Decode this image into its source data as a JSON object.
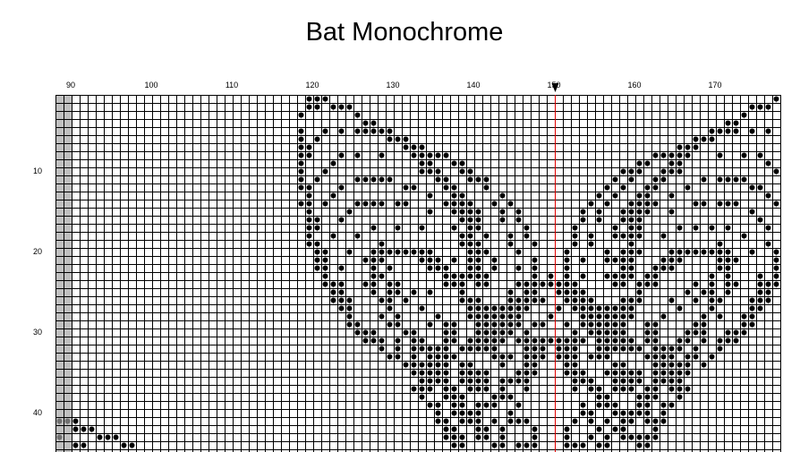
{
  "title": "Bat Monochrome",
  "pattern": {
    "first_column": 88,
    "last_column": 177,
    "first_row": 1,
    "last_row": 45,
    "shaded_columns": [
      88,
      89
    ],
    "center_column": 150,
    "column_labels": [
      "90",
      "100",
      "110",
      "120",
      "130",
      "140",
      "150",
      "160",
      "170"
    ],
    "row_labels": [
      "10",
      "20",
      "30",
      "40"
    ],
    "colors": {
      "grid": "#000000",
      "stitch": "#000000",
      "shaded": "#c0c0c0",
      "shaded_stitch": "#707070",
      "center_line": "#e00000"
    },
    "stitches": {
      "1": [
        119,
        120,
        121,
        177
      ],
      "2": [
        119,
        120,
        122,
        123,
        124,
        174,
        175,
        176
      ],
      "3": [
        118,
        125,
        173
      ],
      "4": [
        126,
        127,
        171,
        172
      ],
      "5": [
        118,
        121,
        123,
        125,
        126,
        127,
        128,
        129,
        169,
        170,
        171,
        172,
        174,
        176
      ],
      "6": [
        118,
        120,
        129,
        130,
        131,
        167,
        168,
        169
      ],
      "7": [
        118,
        119,
        131,
        132,
        133,
        165,
        166,
        167
      ],
      "8": [
        118,
        119,
        123,
        125,
        128,
        132,
        133,
        134,
        135,
        136,
        162,
        163,
        164,
        165,
        166,
        170,
        173,
        175
      ],
      "9": [
        118,
        122,
        133,
        134,
        137,
        138,
        160,
        161,
        164,
        165,
        176
      ],
      "10": [
        118,
        121,
        133,
        134,
        135,
        138,
        139,
        158,
        159,
        160,
        163,
        164,
        165,
        177
      ],
      "11": [
        118,
        120,
        125,
        126,
        127,
        128,
        129,
        135,
        136,
        139,
        140,
        141,
        157,
        159,
        162,
        163,
        168,
        170,
        171,
        172,
        173
      ],
      "12": [
        118,
        119,
        123,
        131,
        132,
        136,
        137,
        141,
        156,
        158,
        161,
        162,
        166,
        174,
        175
      ],
      "13": [
        119,
        122,
        134,
        137,
        138,
        143,
        155,
        157,
        160,
        161,
        164,
        176
      ],
      "14": [
        118,
        119,
        121,
        125,
        126,
        127,
        128,
        130,
        131,
        136,
        137,
        138,
        139,
        142,
        144,
        154,
        156,
        159,
        160,
        161,
        162,
        167,
        168,
        170,
        171,
        172,
        177
      ],
      "15": [
        119,
        124,
        134,
        137,
        138,
        139,
        140,
        143,
        145,
        153,
        155,
        158,
        159,
        160,
        161,
        164,
        174
      ],
      "16": [
        119,
        120,
        123,
        138,
        139,
        140,
        143,
        145,
        153,
        155,
        158,
        159,
        160,
        175
      ],
      "17": [
        119,
        120,
        127,
        130,
        133,
        137,
        139,
        140,
        146,
        152,
        157,
        159,
        160,
        165,
        167,
        169,
        171,
        176
      ],
      "18": [
        119,
        122,
        125,
        138,
        139,
        141,
        144,
        146,
        152,
        154,
        157,
        158,
        159,
        160,
        163,
        173
      ],
      "19": [
        119,
        120,
        128,
        138,
        139,
        140,
        144,
        147,
        152,
        154,
        159,
        170,
        176
      ],
      "20": [
        120,
        121,
        124,
        127,
        128,
        129,
        130,
        131,
        132,
        133,
        134,
        139,
        140,
        141,
        145,
        151,
        156,
        158,
        159,
        160,
        164,
        165,
        166,
        167,
        168,
        169,
        170,
        171,
        174,
        177
      ],
      "21": [
        120,
        121,
        126,
        127,
        128,
        133,
        134,
        135,
        137,
        139,
        140,
        142,
        147,
        151,
        153,
        156,
        157,
        158,
        159,
        163,
        164,
        165,
        170,
        171,
        172,
        177
      ],
      "22": [
        120,
        121,
        123,
        127,
        129,
        134,
        135,
        136,
        139,
        140,
        142,
        145,
        147,
        151,
        158,
        159,
        162,
        163,
        164,
        170,
        171,
        177
      ],
      "23": [
        121,
        127,
        128,
        136,
        137,
        138,
        139,
        140,
        141,
        147,
        149,
        151,
        153,
        156,
        157,
        158,
        159,
        161,
        162,
        169,
        171,
        175,
        177
      ],
      "24": [
        121,
        122,
        123,
        126,
        127,
        129,
        130,
        136,
        137,
        138,
        140,
        141,
        145,
        146,
        147,
        148,
        149,
        150,
        151,
        152,
        157,
        158,
        160,
        161,
        162,
        167,
        169,
        171,
        172,
        175,
        176,
        177
      ],
      "25": [
        122,
        123,
        127,
        129,
        130,
        132,
        134,
        138,
        144,
        146,
        147,
        150,
        151,
        152,
        153,
        160,
        166,
        168,
        169,
        171,
        175,
        176
      ],
      "26": [
        122,
        123,
        124,
        128,
        129,
        131,
        138,
        139,
        140,
        144,
        145,
        146,
        147,
        148,
        151,
        152,
        153,
        154,
        158,
        159,
        160,
        164,
        167,
        169,
        170,
        174,
        175,
        176
      ],
      "27": [
        123,
        124,
        129,
        133,
        139,
        140,
        141,
        142,
        143,
        144,
        145,
        146,
        150,
        152,
        153,
        154,
        155,
        156,
        157,
        158,
        159,
        165,
        169,
        174,
        175
      ],
      "28": [
        124,
        128,
        130,
        135,
        139,
        140,
        141,
        142,
        143,
        144,
        145,
        149,
        153,
        154,
        155,
        156,
        157,
        158,
        159,
        163,
        168,
        170,
        173,
        174
      ],
      "29": [
        124,
        125,
        129,
        130,
        134,
        136,
        137,
        140,
        141,
        142,
        143,
        144,
        145,
        147,
        148,
        151,
        153,
        154,
        155,
        156,
        157,
        158,
        161,
        162,
        167,
        168,
        173,
        174
      ],
      "30": [
        125,
        126,
        127,
        131,
        132,
        136,
        137,
        140,
        141,
        142,
        143,
        144,
        146,
        152,
        154,
        155,
        156,
        157,
        158,
        161,
        162,
        166,
        167,
        168,
        171,
        172,
        173
      ],
      "31": [
        126,
        127,
        128,
        130,
        132,
        133,
        136,
        137,
        139,
        140,
        141,
        142,
        143,
        145,
        146,
        147,
        148,
        149,
        150,
        151,
        152,
        153,
        155,
        156,
        157,
        158,
        159,
        161,
        162,
        165,
        166,
        168,
        170,
        171,
        172
      ],
      "32": [
        128,
        130,
        132,
        133,
        134,
        135,
        136,
        138,
        139,
        140,
        141,
        142,
        146,
        147,
        148,
        150,
        151,
        152,
        155,
        156,
        157,
        158,
        159,
        160,
        162,
        163,
        164,
        165,
        167,
        170
      ],
      "33": [
        129,
        130,
        132,
        134,
        135,
        136,
        137,
        142,
        143,
        144,
        146,
        147,
        148,
        150,
        151,
        152,
        154,
        155,
        156,
        161,
        162,
        163,
        164,
        166,
        167,
        169
      ],
      "34": [
        131,
        132,
        133,
        134,
        135,
        136,
        138,
        139,
        143,
        146,
        147,
        151,
        152,
        157,
        158,
        162,
        163,
        164,
        165,
        166,
        168
      ],
      "35": [
        132,
        133,
        134,
        135,
        136,
        138,
        139,
        140,
        141,
        145,
        146,
        147,
        151,
        152,
        153,
        156,
        157,
        158,
        159,
        160,
        162,
        163,
        164,
        165,
        166
      ],
      "36": [
        133,
        134,
        135,
        136,
        138,
        139,
        140,
        141,
        143,
        144,
        145,
        146,
        152,
        153,
        154,
        157,
        158,
        159,
        160,
        162,
        163,
        164,
        165
      ],
      "37": [
        132,
        133,
        134,
        136,
        137,
        139,
        140,
        141,
        143,
        146,
        152,
        154,
        155,
        157,
        158,
        159,
        161,
        162,
        164,
        165,
        166
      ],
      "38": [
        133,
        136,
        137,
        138,
        142,
        143,
        144,
        155,
        156,
        160,
        161,
        162,
        165
      ],
      "39": [
        134,
        135,
        137,
        138,
        140,
        141,
        142,
        145,
        153,
        155,
        156,
        157,
        160,
        161,
        163,
        164
      ],
      "40": [
        135,
        137,
        138,
        139,
        140,
        144,
        153,
        154,
        157,
        158,
        159,
        160,
        161,
        163
      ],
      "41": [
        88,
        89,
        90,
        135,
        136,
        138,
        139,
        140,
        142,
        144,
        145,
        146,
        152,
        154,
        156,
        158,
        159,
        161,
        162,
        163
      ],
      "42": [
        90,
        91,
        92,
        136,
        137,
        140,
        141,
        143,
        147,
        151,
        155,
        157,
        158,
        162
      ],
      "43": [
        88,
        93,
        94,
        95,
        136,
        137,
        138,
        140,
        141,
        143,
        147,
        151,
        154,
        156,
        158,
        159,
        160,
        161,
        162
      ],
      "44": [
        90,
        91,
        96,
        97,
        137,
        138,
        142,
        143,
        145,
        146,
        147,
        151,
        152,
        153,
        155,
        156,
        160,
        161
      ]
    }
  }
}
